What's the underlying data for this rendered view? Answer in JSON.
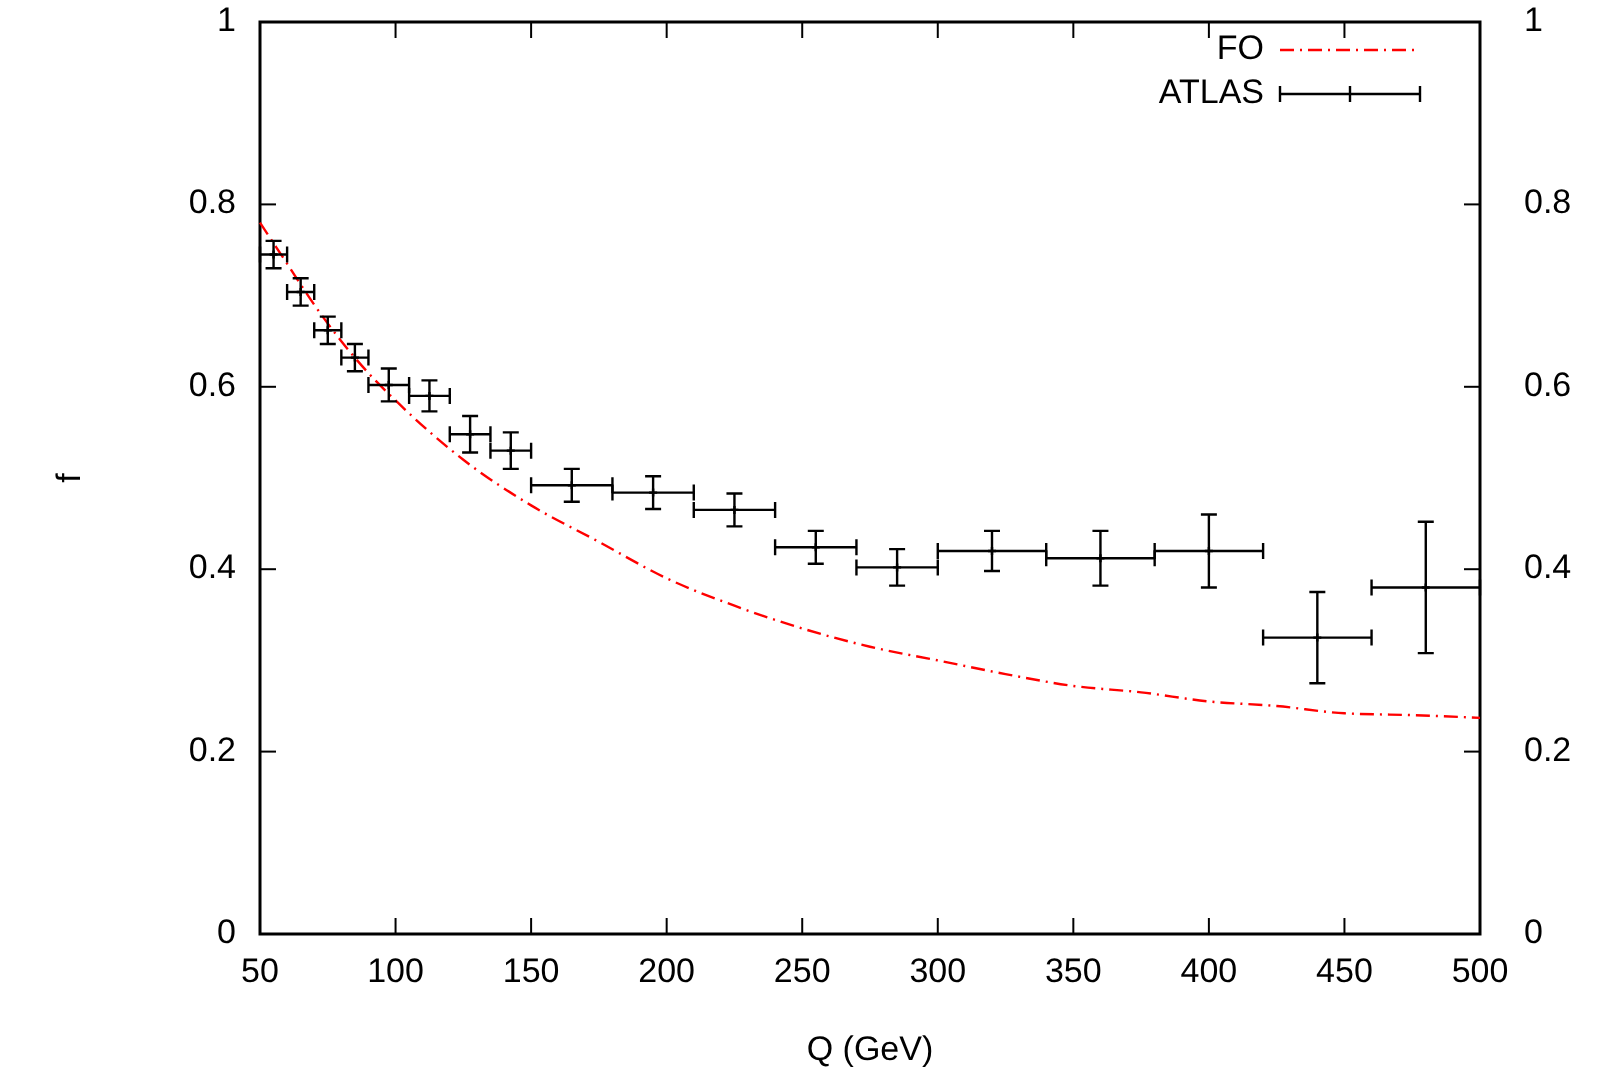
{
  "chart_data": {
    "type": "line",
    "xlabel": "Q (GeV)",
    "ylabel": "f",
    "xlim": [
      50,
      500
    ],
    "xticks": [
      50,
      100,
      150,
      200,
      250,
      300,
      350,
      400,
      450,
      500
    ],
    "ylim": [
      0,
      1
    ],
    "yticks": [
      0,
      0.2,
      0.4,
      0.6,
      0.8,
      1
    ],
    "y2lim": [
      0,
      1
    ],
    "y2ticks": [
      0,
      0.2,
      0.4,
      0.6,
      0.8,
      1
    ],
    "legend": "top right",
    "grid": false,
    "series": [
      {
        "name": "FO",
        "color": "#ff0000",
        "line_style": "dashed",
        "marker": "none",
        "x": [
          50,
          60,
          70,
          80,
          90,
          100,
          125,
          150,
          175,
          200,
          225,
          250,
          275,
          300,
          325,
          350,
          375,
          400,
          425,
          450,
          475,
          500
        ],
        "values": [
          0.78,
          0.735,
          0.69,
          0.65,
          0.615,
          0.585,
          0.52,
          0.47,
          0.43,
          0.39,
          0.36,
          0.335,
          0.315,
          0.3,
          0.285,
          0.272,
          0.265,
          0.255,
          0.25,
          0.242,
          0.24,
          0.237
        ]
      },
      {
        "name": "ATLAS",
        "type": "scatter",
        "color": "#000000",
        "marker": "cross",
        "x": [
          55,
          65,
          75,
          85,
          97.5,
          112.5,
          127.5,
          142.5,
          165,
          195,
          225,
          255,
          285,
          320,
          360,
          400,
          440,
          480
        ],
        "values": [
          0.745,
          0.704,
          0.662,
          0.632,
          0.602,
          0.59,
          0.548,
          0.53,
          0.492,
          0.484,
          0.465,
          0.424,
          0.402,
          0.42,
          0.412,
          0.42,
          0.325,
          0.38
        ],
        "errors": [
          0.015,
          0.015,
          0.015,
          0.015,
          0.018,
          0.017,
          0.02,
          0.02,
          0.018,
          0.018,
          0.018,
          0.018,
          0.02,
          0.022,
          0.03,
          0.04,
          0.05,
          0.072
        ],
        "xerrors": [
          5,
          5,
          5,
          5,
          7.5,
          7.5,
          7.5,
          7.5,
          15,
          15,
          15,
          15,
          15,
          20,
          20,
          20,
          20,
          20
        ]
      }
    ]
  }
}
